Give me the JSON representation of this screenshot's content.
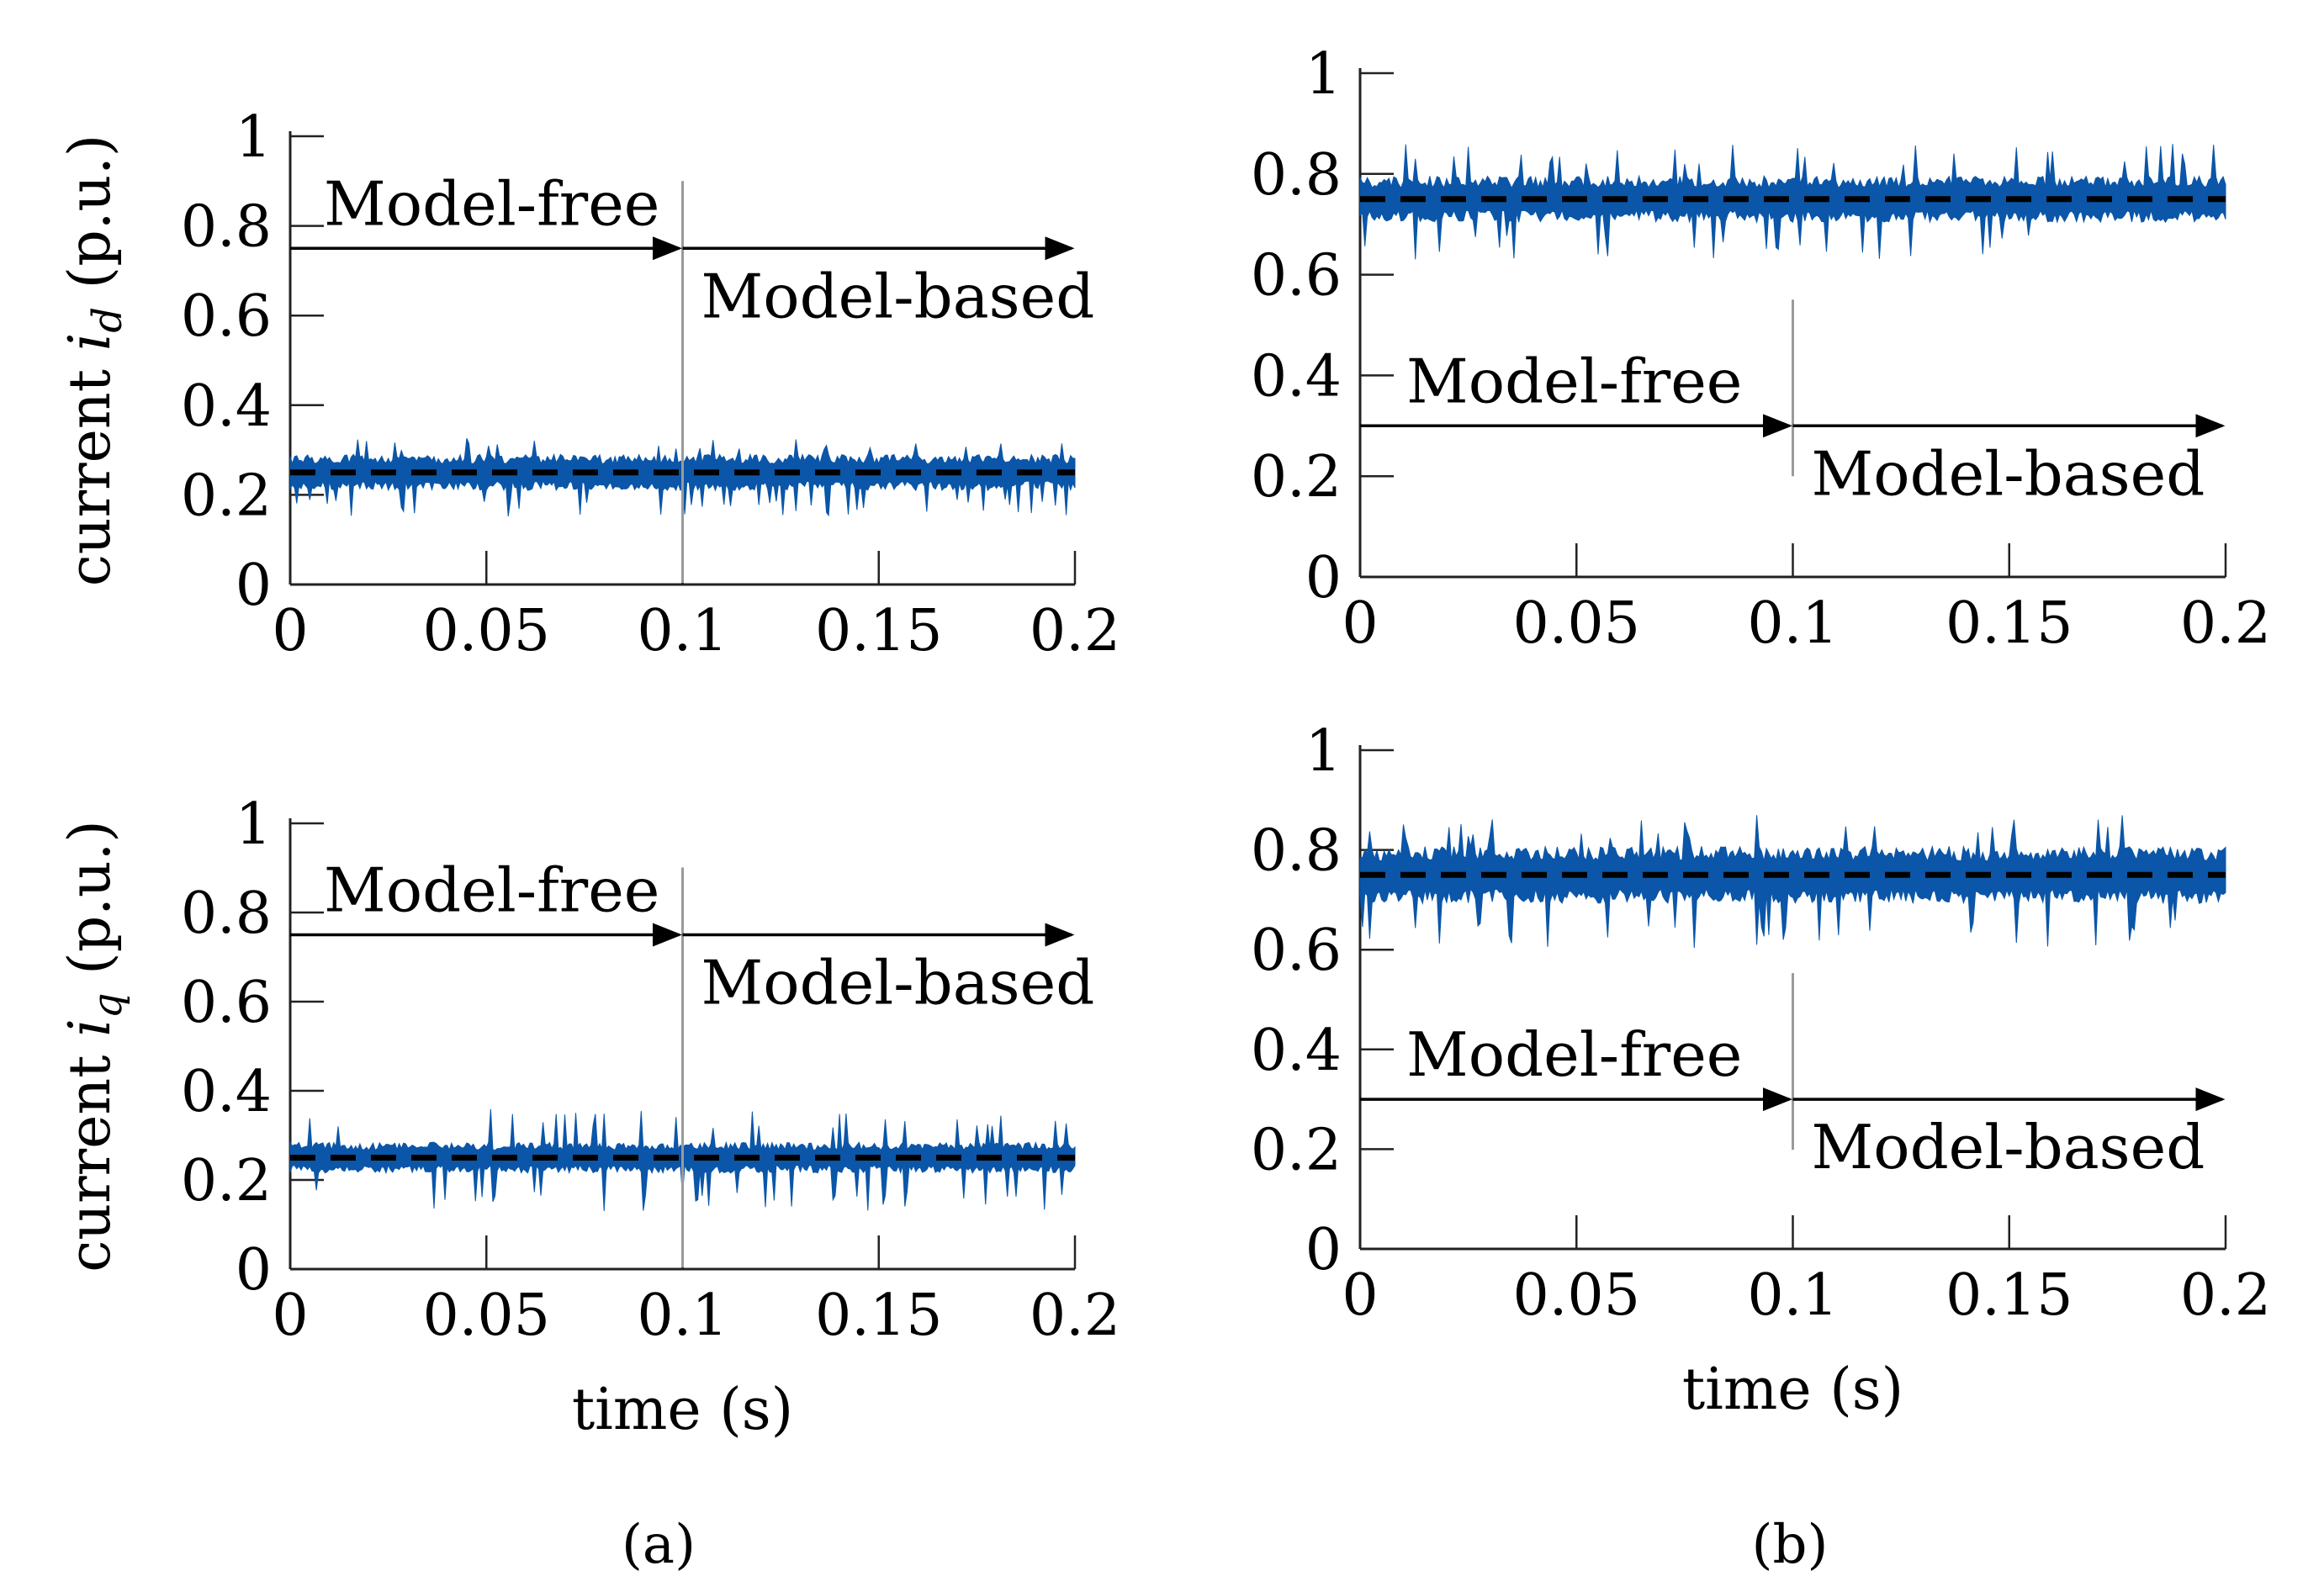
{
  "figure": {
    "captions": [
      "(a)",
      "(b)"
    ],
    "xlabel": "time (s)",
    "ylabel_top": "current i_d (p.u.)",
    "ylabel_bottom": "current i_q (p.u.)",
    "ylabel_prefix": "current",
    "ylabel_suffix": "(p.u.)",
    "ylabel_var": "i",
    "ylabel_sub_top": "d",
    "ylabel_sub_bottom": "q",
    "colors": {
      "signal": "#0b56a8",
      "reference": "#000000",
      "divider": "#9a9a9a"
    }
  },
  "chart_data": [
    {
      "id": "a-id",
      "type": "area",
      "xlabel": "",
      "ylabel": "current i_d (p.u.)",
      "xlim": [
        0,
        0.2
      ],
      "ylim": [
        0,
        1
      ],
      "xticks": [
        0,
        0.05,
        0.1,
        0.15,
        0.2
      ],
      "xtick_labels": [
        "0",
        "0.05",
        "0.1",
        "0.15",
        "0.2"
      ],
      "yticks": [
        0,
        0.2,
        0.4,
        0.6,
        0.8,
        1
      ],
      "ytick_labels": [
        "0",
        "0.2",
        "0.4",
        "0.6",
        "0.8",
        "1"
      ],
      "series": [
        {
          "name": "current",
          "mean": 0.25,
          "band_halfwidth": 0.035,
          "peak_max": 0.33,
          "peak_min": 0.15
        },
        {
          "name": "reference",
          "style": "dashed",
          "y": 0.25
        }
      ],
      "switch_time": 0.1,
      "annotations": [
        {
          "text": "Model-free",
          "arrow_from": 0,
          "arrow_to": 0.1,
          "arrow_y": 0.75
        },
        {
          "text": "Model-based",
          "arrow_from": 0.1,
          "arrow_to": 0.2,
          "arrow_y": 0.75
        }
      ]
    },
    {
      "id": "b-id",
      "type": "area",
      "xlabel": "",
      "ylabel": "",
      "xlim": [
        0,
        0.2
      ],
      "ylim": [
        0,
        1
      ],
      "xticks": [
        0,
        0.05,
        0.1,
        0.15,
        0.2
      ],
      "xtick_labels": [
        "0",
        "0.05",
        "0.1",
        "0.15",
        "0.2"
      ],
      "yticks": [
        0,
        0.2,
        0.4,
        0.6,
        0.8,
        1
      ],
      "ytick_labels": [
        "0",
        "0.2",
        "0.4",
        "0.6",
        "0.8",
        "1"
      ],
      "series": [
        {
          "name": "current",
          "mean": 0.75,
          "band_halfwidth": 0.04,
          "peak_max": 0.86,
          "peak_min": 0.63
        },
        {
          "name": "reference",
          "style": "dashed",
          "y": 0.75
        }
      ],
      "switch_time": 0.1,
      "annotations": [
        {
          "text": "Model-free",
          "arrow_from": 0,
          "arrow_to": 0.1,
          "arrow_y": 0.3
        },
        {
          "text": "Model-based",
          "arrow_from": 0.1,
          "arrow_to": 0.2,
          "arrow_y": 0.3
        }
      ]
    },
    {
      "id": "a-iq",
      "type": "area",
      "xlabel": "time (s)",
      "ylabel": "current i_q (p.u.)",
      "xlim": [
        0,
        0.2
      ],
      "ylim": [
        0,
        1
      ],
      "xticks": [
        0,
        0.05,
        0.1,
        0.15,
        0.2
      ],
      "xtick_labels": [
        "0",
        "0.05",
        "0.1",
        "0.15",
        "0.2"
      ],
      "yticks": [
        0,
        0.2,
        0.4,
        0.6,
        0.8,
        1
      ],
      "ytick_labels": [
        "0",
        "0.2",
        "0.4",
        "0.6",
        "0.8",
        "1"
      ],
      "series": [
        {
          "name": "current",
          "mean": 0.25,
          "band_halfwidth": 0.03,
          "peak_max": 0.36,
          "peak_min": 0.13
        },
        {
          "name": "reference",
          "style": "dashed",
          "y": 0.25
        }
      ],
      "switch_time": 0.1,
      "annotations": [
        {
          "text": "Model-free",
          "arrow_from": 0,
          "arrow_to": 0.1,
          "arrow_y": 0.75
        },
        {
          "text": "Model-based",
          "arrow_from": 0.1,
          "arrow_to": 0.2,
          "arrow_y": 0.75
        }
      ]
    },
    {
      "id": "b-iq",
      "type": "area",
      "xlabel": "time (s)",
      "ylabel": "",
      "xlim": [
        0,
        0.2
      ],
      "ylim": [
        0,
        1
      ],
      "xticks": [
        0,
        0.05,
        0.1,
        0.15,
        0.2
      ],
      "xtick_labels": [
        "0",
        "0.05",
        "0.1",
        "0.15",
        "0.2"
      ],
      "yticks": [
        0,
        0.2,
        0.4,
        0.6,
        0.8,
        1
      ],
      "ytick_labels": [
        "0",
        "0.2",
        "0.4",
        "0.6",
        "0.8",
        "1"
      ],
      "series": [
        {
          "name": "current",
          "mean": 0.75,
          "band_halfwidth": 0.05,
          "peak_max": 0.87,
          "peak_min": 0.6
        },
        {
          "name": "reference",
          "style": "dashed",
          "y": 0.75
        }
      ],
      "switch_time": 0.1,
      "annotations": [
        {
          "text": "Model-free",
          "arrow_from": 0,
          "arrow_to": 0.1,
          "arrow_y": 0.3
        },
        {
          "text": "Model-based",
          "arrow_from": 0.1,
          "arrow_to": 0.2,
          "arrow_y": 0.3
        }
      ]
    }
  ]
}
